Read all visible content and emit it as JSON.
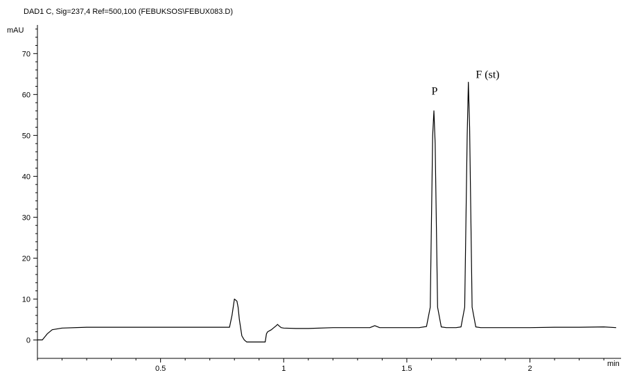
{
  "chart_data": {
    "type": "line",
    "title": "DAD1 C, Sig=237,4 Ref=500,100 (FEBUKSOS\\FEBUX083.D)",
    "ylabel": "mAU",
    "xlabel": "min",
    "xlim": [
      0.0,
      2.37
    ],
    "ylim": [
      -4.5,
      77
    ],
    "x_ticks": [
      {
        "value": 0.5,
        "label": "0.5"
      },
      {
        "value": 1.0,
        "label": "1"
      },
      {
        "value": 1.5,
        "label": "1.5"
      },
      {
        "value": 2.0,
        "label": "2"
      }
    ],
    "y_ticks": [
      {
        "value": 0,
        "label": "0"
      },
      {
        "value": 10,
        "label": "10"
      },
      {
        "value": 20,
        "label": "20"
      },
      {
        "value": 30,
        "label": "30"
      },
      {
        "value": 40,
        "label": "40"
      },
      {
        "value": 50,
        "label": "50"
      },
      {
        "value": 60,
        "label": "60"
      },
      {
        "value": 70,
        "label": "70"
      }
    ],
    "grid": false,
    "annotations": [
      {
        "text": "P",
        "x": 1.6,
        "y": 60
      },
      {
        "text": "F (st)",
        "x": 1.78,
        "y": 64
      }
    ],
    "series": [
      {
        "color": "#000000",
        "x": [
          0.0,
          0.02,
          0.04,
          0.06,
          0.1,
          0.2,
          0.3,
          0.4,
          0.5,
          0.6,
          0.7,
          0.78,
          0.79,
          0.8,
          0.81,
          0.815,
          0.82,
          0.83,
          0.84,
          0.85,
          0.87,
          0.9,
          0.925,
          0.93,
          0.935,
          0.95,
          0.96,
          0.97,
          0.975,
          0.98,
          0.99,
          1.0,
          1.05,
          1.1,
          1.2,
          1.3,
          1.35,
          1.37,
          1.39,
          1.45,
          1.5,
          1.55,
          1.58,
          1.595,
          1.605,
          1.61,
          1.615,
          1.625,
          1.64,
          1.66,
          1.7,
          1.72,
          1.735,
          1.745,
          1.75,
          1.755,
          1.765,
          1.78,
          1.8,
          1.9,
          2.0,
          2.1,
          2.2,
          2.3,
          2.35
        ],
        "y": [
          0.0,
          0.0,
          1.5,
          2.5,
          2.9,
          3.1,
          3.1,
          3.1,
          3.1,
          3.1,
          3.1,
          3.1,
          6.0,
          10.0,
          9.5,
          8.0,
          5.0,
          1.0,
          0.0,
          -0.5,
          -0.5,
          -0.5,
          -0.5,
          1.5,
          2.0,
          2.5,
          3.0,
          3.5,
          3.8,
          3.5,
          3.0,
          2.9,
          2.8,
          2.8,
          3.0,
          3.0,
          3.0,
          3.5,
          3.0,
          3.0,
          3.0,
          3.0,
          3.3,
          8.0,
          50.0,
          56.0,
          48.0,
          8.0,
          3.2,
          3.0,
          3.0,
          3.2,
          8.0,
          50.0,
          63.0,
          52.0,
          8.0,
          3.2,
          3.0,
          3.0,
          3.0,
          3.1,
          3.1,
          3.2,
          3.0
        ]
      }
    ]
  }
}
